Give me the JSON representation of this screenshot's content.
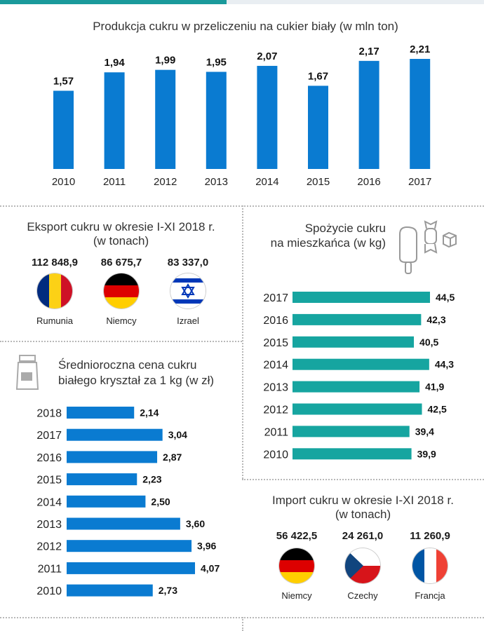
{
  "colors": {
    "blue": "#0a7bd1",
    "teal": "#16a5a0",
    "accent": "#1a9a9b"
  },
  "production": {
    "title": "Produkcja cukru w przeliczeniu na cukier biały (w mln ton)"
  },
  "export": {
    "title_line1": "Eksport cukru w okresie I-XI 2018 r.",
    "title_line2": "(w tonach)",
    "countries": [
      {
        "name": "Rumunia",
        "value": "112 848,9",
        "flag": "romania-flag"
      },
      {
        "name": "Niemcy",
        "value": "86 675,7",
        "flag": "germany-flag"
      },
      {
        "name": "Izrael",
        "value": "83 337,0",
        "flag": "israel-flag"
      }
    ]
  },
  "consumption": {
    "title_line1": "Spożycie cukru",
    "title_line2": "na mieszkańca (w kg)"
  },
  "price": {
    "title_line1": "Średnioroczna cena cukru",
    "title_line2": "białego kryształ za 1 kg (w zł)"
  },
  "import": {
    "title_line1": "Import cukru w okresie I-XI 2018 r.",
    "title_line2": "(w tonach)",
    "countries": [
      {
        "name": "Niemcy",
        "value": "56 422,5",
        "flag": "germany-flag"
      },
      {
        "name": "Czechy",
        "value": "24 261,0",
        "flag": "czech-flag"
      },
      {
        "name": "Francja",
        "value": "11 260,9",
        "flag": "france-flag"
      }
    ]
  },
  "chart_data": [
    {
      "type": "bar",
      "title": "Produkcja cukru w przeliczeniu na cukier biały (w mln ton)",
      "categories": [
        "2010",
        "2011",
        "2012",
        "2013",
        "2014",
        "2015",
        "2016",
        "2017"
      ],
      "values": [
        1.57,
        1.94,
        1.99,
        1.95,
        2.07,
        1.67,
        2.17,
        2.21
      ],
      "labels": [
        "1,57",
        "1,94",
        "1,99",
        "1,95",
        "2,07",
        "1,67",
        "2,17",
        "2,21"
      ],
      "xlabel": "",
      "ylabel": "",
      "ylim": [
        0,
        2.21
      ]
    },
    {
      "type": "bar",
      "orientation": "horizontal",
      "title": "Spożycie cukru na mieszkańca (w kg)",
      "categories": [
        "2017",
        "2016",
        "2015",
        "2014",
        "2013",
        "2012",
        "2011",
        "2010"
      ],
      "values": [
        44.5,
        42.3,
        40.5,
        44.3,
        41.9,
        42.5,
        39.4,
        39.9
      ],
      "labels": [
        "44,5",
        "42,3",
        "40,5",
        "44,3",
        "41,9",
        "42,5",
        "39,4",
        "39,9"
      ],
      "xlim": [
        33,
        44.5
      ]
    },
    {
      "type": "bar",
      "orientation": "horizontal",
      "title": "Średnioroczna cena cukru białego kryształ za 1 kg (w zł)",
      "categories": [
        "2018",
        "2017",
        "2016",
        "2015",
        "2014",
        "2013",
        "2012",
        "2011",
        "2010"
      ],
      "values": [
        2.14,
        3.04,
        2.87,
        2.23,
        2.5,
        3.6,
        3.96,
        4.07,
        2.73
      ],
      "labels": [
        "2,14",
        "3,04",
        "2,87",
        "2,23",
        "2,50",
        "3,60",
        "3,96",
        "4,07",
        "2,73"
      ],
      "xlim": [
        0,
        4.07
      ]
    }
  ]
}
